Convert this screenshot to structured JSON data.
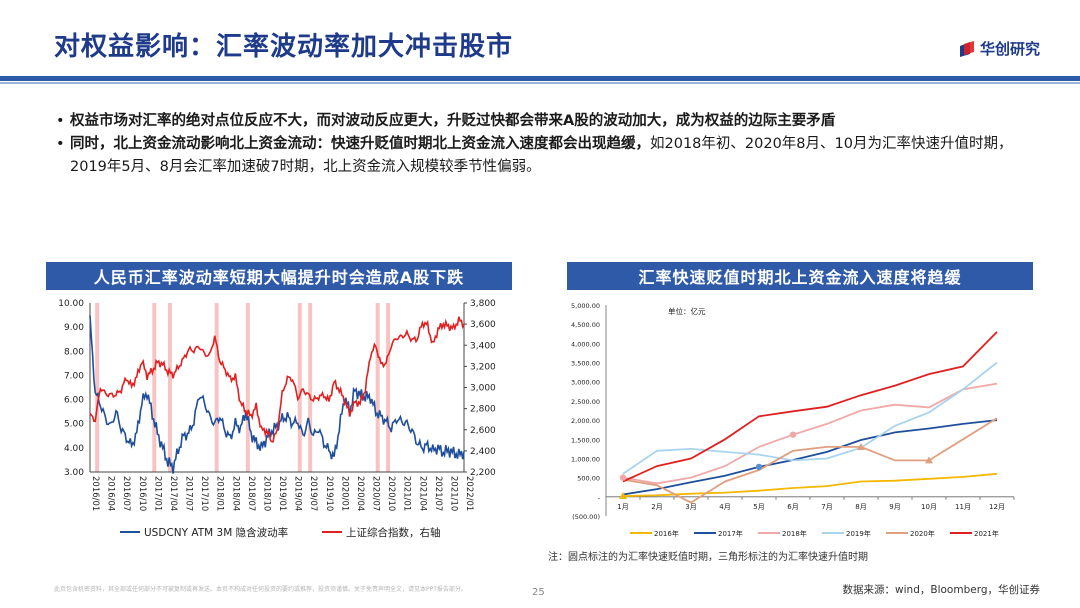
{
  "header": {
    "title": "对权益影响：汇率波动率加大冲击股市",
    "logo_text": "华创研究"
  },
  "bullets": [
    {
      "bold": "权益市场对汇率的绝对点位反应不大，而对波动反应更大，升贬过快都会带来A股的波动加大，成为权益的边际主要矛盾",
      "normal": ""
    },
    {
      "bold": "同时，北上资金流动影响北上资金流动：快速升贬值时期北上资金流入速度都会出现趋缓，",
      "normal": "如2018年初、2020年8月、10月为汇率快速升值时期，2019年5月、8月会汇率加速破7时期，北上资金流入规模较季节性偏弱。"
    }
  ],
  "chart_data": [
    {
      "type": "line",
      "title": "人民币汇率波动率短期大幅提升时会造成A股下跌",
      "left_axis": {
        "ticks": [
          "10.00",
          "9.00",
          "8.00",
          "7.00",
          "6.00",
          "5.00",
          "4.00",
          "3.00"
        ],
        "range": [
          3,
          10
        ]
      },
      "right_axis": {
        "ticks": [
          "3,800",
          "3,600",
          "3,400",
          "3,200",
          "3,000",
          "2,800",
          "2,600",
          "2,400",
          "2,200"
        ],
        "range": [
          2200,
          3800
        ]
      },
      "x_ticks": [
        "2016/01",
        "2016/04",
        "2016/07",
        "2016/10",
        "2017/01",
        "2017/04",
        "2017/07",
        "2017/10",
        "2018/01",
        "2018/04",
        "2018/07",
        "2018/10",
        "2019/01",
        "2019/04",
        "2019/07",
        "2019/10",
        "2020/01",
        "2020/04",
        "2020/07",
        "2020/10",
        "2021/01",
        "2021/04",
        "2021/07",
        "2021/10",
        "2022/01"
      ],
      "x_start_month": 0,
      "series": [
        {
          "name": "USDCNY ATM 3M 隐含波动率",
          "axis": "left",
          "color": "#1f4e9a",
          "monthly": [
            9.3,
            6.3,
            5.8,
            5.2,
            4.9,
            5.5,
            4.8,
            4.4,
            4.1,
            4.6,
            5.9,
            6.3,
            5.4,
            4.6,
            4.0,
            3.4,
            3.2,
            3.9,
            4.5,
            4.6,
            5.1,
            6.2,
            5.9,
            5.3,
            5.0,
            5.3,
            4.7,
            4.4,
            5.0,
            4.8,
            5.5,
            4.6,
            4.2,
            4.0,
            4.4,
            4.7,
            4.9,
            5.2,
            5.3,
            5.0,
            5.1,
            4.5,
            5.1,
            4.5,
            4.8,
            4.2,
            3.9,
            3.6,
            4.8,
            6.1,
            5.5,
            6.4,
            6.2,
            6.1,
            6.1,
            5.5,
            5.3,
            5.1,
            4.8,
            5.2,
            5.1,
            5.0,
            4.7,
            4.2,
            4.0,
            4.1,
            3.9,
            4.0,
            3.8,
            3.9,
            3.8,
            3.7,
            3.85
          ]
        },
        {
          "name": "上证综合指数，右轴",
          "axis": "right",
          "color": "#e02020",
          "monthly": [
            2740,
            2690,
            3000,
            2940,
            2930,
            2930,
            2980,
            3090,
            3010,
            3100,
            3250,
            3110,
            3160,
            3240,
            3220,
            3150,
            3120,
            3190,
            3270,
            3360,
            3350,
            3390,
            3320,
            3300,
            3480,
            3250,
            3170,
            3080,
            3100,
            2850,
            2780,
            2730,
            2820,
            2600,
            2590,
            2490,
            2580,
            2940,
            3090,
            3080,
            2900,
            2980,
            2930,
            2880,
            2910,
            2930,
            2870,
            3050,
            2980,
            2880,
            2750,
            2860,
            2850,
            2980,
            3310,
            3400,
            3220,
            3230,
            3400,
            3470,
            3480,
            3510,
            3450,
            3460,
            3610,
            3590,
            3400,
            3550,
            3600,
            3580,
            3560,
            3640,
            3600
          ]
        }
      ],
      "shade_months": [
        [
          1,
          1.6
        ],
        [
          12,
          12.5
        ],
        [
          15,
          15.5
        ],
        [
          24,
          24.6
        ],
        [
          30,
          30.5
        ],
        [
          40,
          40.6
        ],
        [
          42,
          42.5
        ],
        [
          55,
          55.4
        ],
        [
          57,
          57.4
        ]
      ],
      "legend": [
        "USDCNY ATM 3M 隐含波动率",
        "上证综合指数，右轴"
      ]
    },
    {
      "type": "line",
      "title": "汇率快速贬值时期北上资金流入速度将趋缓",
      "unit_label": "单位：亿元",
      "y_ticks": [
        "5,000.00",
        "4,500.00",
        "4,000.00",
        "3,500.00",
        "3,000.00",
        "2,500.00",
        "2,000.00",
        "1,500.00",
        "1,000.00",
        "500.00",
        "-",
        "(500.00)"
      ],
      "ylim": [
        -500,
        5000
      ],
      "categories": [
        "1月",
        "2月",
        "3月",
        "4月",
        "5月",
        "6月",
        "7月",
        "8月",
        "9月",
        "10月",
        "11月",
        "12月"
      ],
      "series": [
        {
          "name": "2016年",
          "color": "#f5b800",
          "values": [
            20,
            40,
            80,
            110,
            160,
            230,
            280,
            400,
            420,
            470,
            520,
            600
          ]
        },
        {
          "name": "2017年",
          "color": "#1f4e9a",
          "values": [
            60,
            200,
            380,
            550,
            780,
            960,
            1170,
            1480,
            1680,
            1780,
            1900,
            2000
          ]
        },
        {
          "name": "2018年",
          "color": "#f0a8a8",
          "values": [
            500,
            350,
            500,
            800,
            1300,
            1620,
            1900,
            2250,
            2400,
            2330,
            2800,
            2950
          ]
        },
        {
          "name": "2019年",
          "color": "#a8d4ec",
          "values": [
            600,
            1200,
            1250,
            1170,
            1100,
            950,
            1000,
            1280,
            1850,
            2200,
            2800,
            3500
          ]
        },
        {
          "name": "2020年",
          "color": "#e0a080",
          "values": [
            450,
            300,
            -150,
            400,
            700,
            1200,
            1300,
            1300,
            950,
            950,
            1500,
            2050
          ]
        },
        {
          "name": "2021年",
          "color": "#e02020",
          "values": [
            400,
            800,
            1000,
            1500,
            2100,
            2230,
            2350,
            2650,
            2900,
            3200,
            3400,
            4300
          ]
        }
      ],
      "markers": [
        {
          "series": "2018年",
          "shape": "circle",
          "index": 0
        },
        {
          "series": "2018年",
          "shape": "circle",
          "index": 5
        },
        {
          "series": "2017年",
          "shape": "circle",
          "index": 4
        },
        {
          "series": "2020年",
          "shape": "triangle",
          "index": 7
        },
        {
          "series": "2020年",
          "shape": "triangle",
          "index": 9
        },
        {
          "series": "2016年",
          "shape": "triangle",
          "index": 0
        }
      ]
    }
  ],
  "note": "注：圆点标注的为汇率快速贬值时期，三角形标注的为汇率快速升值时期",
  "disclaimer": "此页包含机密资料，其全部或任何部分不可被复制或再发送。本页不构成对任何投资的要约或推荐，投资须谨慎。关于免责声明全文，请见本PPT报告部分。",
  "page_number": "25",
  "source": "数据来源：wind，Bloomberg，华创证券",
  "colors": {
    "brand": "#2e5aa8",
    "title": "#1e3a8a"
  }
}
